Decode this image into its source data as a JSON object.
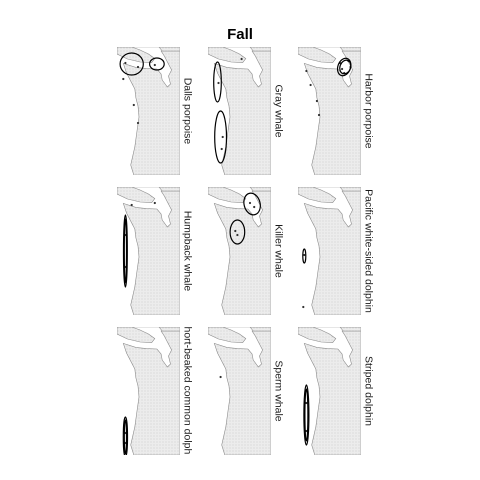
{
  "chart_data": {
    "type": "map",
    "title": "Fall",
    "panels": [
      {
        "label": "Dalls porpoise",
        "ellipses": [
          {
            "cx": -124.3,
            "cy": 48.35,
            "rx": 0.55,
            "ry": 0.55,
            "rot": 0
          },
          {
            "cx": -123.1,
            "cy": 48.35,
            "rx": 0.35,
            "ry": 0.3,
            "rot": 0
          }
        ],
        "points": [
          [
            -124.6,
            48.4
          ],
          [
            -123.2,
            48.3
          ],
          [
            -124.0,
            48.2
          ],
          [
            -124.7,
            47.6
          ],
          [
            -124.2,
            46.3
          ],
          [
            -124.0,
            45.4
          ]
        ]
      },
      {
        "label": "Gray whale",
        "ellipses": [
          {
            "cx": -124.55,
            "cy": 47.45,
            "rx": 0.18,
            "ry": 1.0,
            "rot": 0
          },
          {
            "cx": -124.4,
            "cy": 44.7,
            "rx": 0.28,
            "ry": 1.3,
            "rot": 0
          }
        ],
        "points": [
          [
            -124.5,
            47.4
          ],
          [
            -124.3,
            44.7
          ],
          [
            -124.35,
            44.1
          ],
          [
            -123.4,
            48.6
          ]
        ]
      },
      {
        "label": "Harbor porpoise",
        "ellipses": [
          {
            "cx": -122.8,
            "cy": 48.2,
            "rx": 0.3,
            "ry": 0.45,
            "rot": 20
          },
          {
            "cx": -122.75,
            "cy": 48.2,
            "rx": 0.25,
            "ry": 0.35,
            "rot": 20
          }
        ],
        "points": [
          [
            -122.6,
            48.5
          ],
          [
            -122.9,
            48.1
          ],
          [
            -122.8,
            47.9
          ],
          [
            -123.0,
            48.4
          ],
          [
            -122.5,
            48.2
          ],
          [
            -124.6,
            48.0
          ],
          [
            -124.4,
            47.3
          ],
          [
            -124.1,
            46.5
          ],
          [
            -124.0,
            45.8
          ]
        ]
      },
      {
        "label": "Humpback whale",
        "ellipses": [
          {
            "cx": -124.6,
            "cy": 46.0,
            "rx": 0.09,
            "ry": 1.8,
            "rot": 0
          },
          {
            "cx": -124.6,
            "cy": 46.0,
            "rx": 0.05,
            "ry": 1.6,
            "rot": 0
          }
        ],
        "points": [
          [
            -124.6,
            46.8
          ],
          [
            -124.6,
            45.2
          ],
          [
            -124.3,
            48.3
          ],
          [
            -123.2,
            48.4
          ]
        ]
      },
      {
        "label": "Killer whale",
        "ellipses": [
          {
            "cx": -122.9,
            "cy": 48.35,
            "rx": 0.38,
            "ry": 0.55,
            "rot": -15
          },
          {
            "cx": -123.6,
            "cy": 46.95,
            "rx": 0.35,
            "ry": 0.6,
            "rot": 0
          }
        ],
        "points": [
          [
            -123.0,
            48.4
          ],
          [
            -122.8,
            48.2
          ],
          [
            -123.7,
            47.0
          ],
          [
            -123.6,
            46.8
          ]
        ]
      },
      {
        "label": "Pacific white-sided dolphin",
        "ellipses": [
          {
            "cx": -124.7,
            "cy": 45.75,
            "rx": 0.07,
            "ry": 0.35,
            "rot": 0
          }
        ],
        "points": [
          [
            -124.7,
            45.8
          ],
          [
            -124.75,
            43.2
          ]
        ]
      },
      {
        "label": "Short-beaked common dolphin",
        "ellipses": [
          {
            "cx": -124.6,
            "cy": 43.7,
            "rx": 0.1,
            "ry": 1.0,
            "rot": 0
          },
          {
            "cx": -124.6,
            "cy": 43.7,
            "rx": 0.05,
            "ry": 0.85,
            "rot": 0
          }
        ],
        "points": [
          [
            -124.6,
            43.9
          ],
          [
            -124.6,
            43.4
          ]
        ]
      },
      {
        "label": "Sperm whale",
        "ellipses": [],
        "points": [
          [
            -124.4,
            46.7
          ]
        ]
      },
      {
        "label": "Striped dolphin",
        "ellipses": [
          {
            "cx": -124.6,
            "cy": 44.8,
            "rx": 0.12,
            "ry": 1.5,
            "rot": 0
          },
          {
            "cx": -124.6,
            "cy": 44.8,
            "rx": 0.07,
            "ry": 1.3,
            "rot": 0
          }
        ],
        "points": [
          [
            -124.6,
            45.4
          ],
          [
            -124.6,
            44.0
          ]
        ]
      }
    ]
  }
}
